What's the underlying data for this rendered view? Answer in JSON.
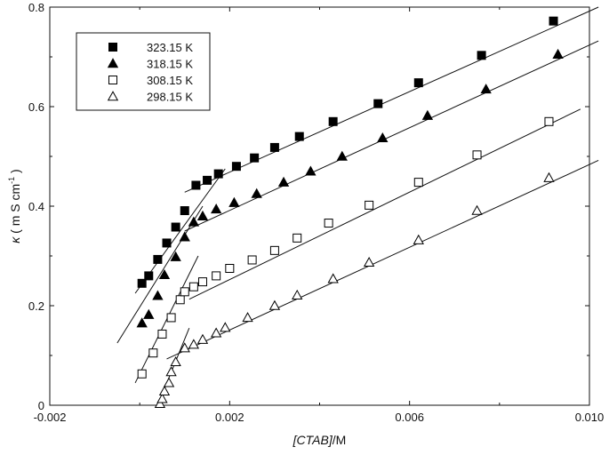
{
  "chart_data": {
    "type": "scatter",
    "title": "",
    "xlabel": {
      "italic_part": "[CTAB]",
      "plain_part": "/M"
    },
    "ylabel": {
      "kappa": "κ",
      "text": " ( m S cm",
      "exp": "-1",
      "close": " )"
    },
    "xlim": [
      -0.002,
      0.01
    ],
    "ylim": [
      0,
      0.8
    ],
    "x_ticks": [
      -0.002,
      0.002,
      0.006,
      0.01
    ],
    "x_tick_labels": [
      "-0.002",
      "0.002",
      "0.006",
      "0.010"
    ],
    "x_minor_ticks": [
      0,
      0.004,
      0.008
    ],
    "y_ticks": [
      0,
      0.2,
      0.4,
      0.6,
      0.8
    ],
    "y_tick_labels": [
      "0",
      "0.2",
      "0.4",
      "0.6",
      "0.8"
    ],
    "y_minor_ticks": [
      0.1,
      0.3,
      0.5,
      0.7
    ],
    "grid": false,
    "legend_position": "top-left",
    "series": [
      {
        "name": "323.15 K",
        "marker": "square-filled",
        "x": [
          5e-05,
          0.0002,
          0.0004,
          0.0006,
          0.0008,
          0.001,
          0.00125,
          0.0015,
          0.00175,
          0.00215,
          0.00255,
          0.003,
          0.00355,
          0.0043,
          0.0053,
          0.0062,
          0.0076,
          0.0092
        ],
        "y": [
          0.245,
          0.26,
          0.293,
          0.326,
          0.358,
          0.391,
          0.442,
          0.452,
          0.465,
          0.48,
          0.497,
          0.518,
          0.54,
          0.57,
          0.606,
          0.648,
          0.703,
          0.772
        ]
      },
      {
        "name": "318.15 K",
        "marker": "triangle-filled",
        "x": [
          5e-05,
          0.0002,
          0.0004,
          0.00055,
          0.0008,
          0.001,
          0.0012,
          0.0014,
          0.0017,
          0.0021,
          0.0026,
          0.0032,
          0.0038,
          0.0045,
          0.0054,
          0.0064,
          0.0077,
          0.0093
        ],
        "y": [
          0.165,
          0.182,
          0.22,
          0.262,
          0.298,
          0.338,
          0.368,
          0.38,
          0.394,
          0.407,
          0.425,
          0.448,
          0.47,
          0.5,
          0.537,
          0.582,
          0.635,
          0.705
        ]
      },
      {
        "name": "308.15 K",
        "marker": "square-open",
        "x": [
          5e-05,
          0.0003,
          0.0005,
          0.0007,
          0.0009,
          0.001,
          0.0012,
          0.0014,
          0.0017,
          0.002,
          0.0025,
          0.003,
          0.0035,
          0.0042,
          0.0051,
          0.0062,
          0.0075,
          0.0091
        ],
        "y": [
          0.063,
          0.105,
          0.143,
          0.176,
          0.212,
          0.228,
          0.238,
          0.248,
          0.26,
          0.275,
          0.292,
          0.311,
          0.336,
          0.366,
          0.402,
          0.448,
          0.503,
          0.57
        ]
      },
      {
        "name": "298.15 K",
        "marker": "triangle-open",
        "x": [
          0.00045,
          0.0005,
          0.00055,
          0.00065,
          0.0007,
          0.0008,
          0.001,
          0.0012,
          0.0014,
          0.0017,
          0.0019,
          0.0024,
          0.003,
          0.0035,
          0.0043,
          0.0051,
          0.0062,
          0.0075,
          0.0091
        ],
        "y": [
          0.003,
          0.013,
          0.028,
          0.045,
          0.067,
          0.087,
          0.115,
          0.122,
          0.132,
          0.145,
          0.156,
          0.176,
          0.2,
          0.221,
          0.254,
          0.287,
          0.332,
          0.391,
          0.457
        ]
      }
    ],
    "fit_lines": [
      {
        "series": "323.15 K",
        "x": [
          -0.0001,
          0.0019
        ],
        "y": [
          0.225,
          0.475
        ]
      },
      {
        "series": "323.15 K",
        "x": [
          0.001,
          0.0102
        ],
        "y": [
          0.428,
          0.8
        ]
      },
      {
        "series": "318.15 K",
        "x": [
          -0.0005,
          0.0014
        ],
        "y": [
          0.125,
          0.4
        ]
      },
      {
        "series": "318.15 K",
        "x": [
          0.001,
          0.0102
        ],
        "y": [
          0.35,
          0.732
        ]
      },
      {
        "series": "308.15 K",
        "x": [
          -0.0001,
          0.0013
        ],
        "y": [
          0.045,
          0.3
        ]
      },
      {
        "series": "308.15 K",
        "x": [
          0.0011,
          0.0098
        ],
        "y": [
          0.213,
          0.595
        ]
      },
      {
        "series": "298.15 K",
        "x": [
          0.0004,
          0.0011
        ],
        "y": [
          0,
          0.155
        ]
      },
      {
        "series": "298.15 K",
        "x": [
          0.0006,
          0.0102
        ],
        "y": [
          0.093,
          0.492
        ]
      }
    ]
  }
}
